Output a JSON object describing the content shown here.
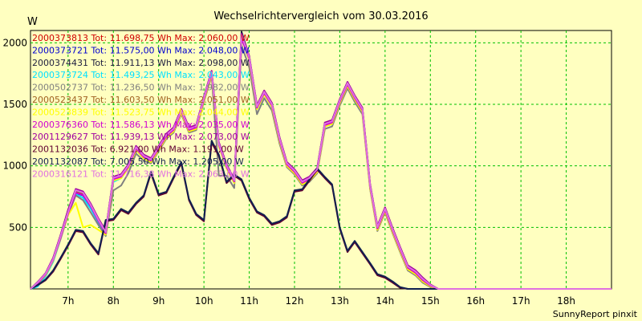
{
  "chart_data": {
    "type": "line",
    "title": "Wechselrichtervergleich vom 30.03.2016",
    "ylabel": "W",
    "credit": "SunnyReport pinxit",
    "background_color": "#ffffc0",
    "grid": true,
    "grid_color": "#00c000",
    "legend_position": "top-left",
    "xlim": [
      6.17,
      19.0
    ],
    "ylim": [
      0,
      2100
    ],
    "x_ticks": [
      {
        "value": 7,
        "label": "7h"
      },
      {
        "value": 8,
        "label": "8h"
      },
      {
        "value": 9,
        "label": "9h"
      },
      {
        "value": 10,
        "label": "10h"
      },
      {
        "value": 11,
        "label": "11h"
      },
      {
        "value": 12,
        "label": "12h"
      },
      {
        "value": 13,
        "label": "13h"
      },
      {
        "value": 14,
        "label": "14h"
      },
      {
        "value": 15,
        "label": "15h"
      },
      {
        "value": 16,
        "label": "16h"
      },
      {
        "value": 17,
        "label": "17h"
      },
      {
        "value": 18,
        "label": "18h"
      }
    ],
    "y_ticks": [
      {
        "value": 500,
        "label": "500"
      },
      {
        "value": 1000,
        "label": "1000"
      },
      {
        "value": 1500,
        "label": "1500"
      },
      {
        "value": 2000,
        "label": "2000"
      }
    ],
    "x": [
      6.17,
      6.33,
      6.5,
      6.67,
      6.83,
      7.0,
      7.17,
      7.33,
      7.5,
      7.67,
      7.83,
      8.0,
      8.17,
      8.33,
      8.5,
      8.67,
      8.83,
      9.0,
      9.17,
      9.33,
      9.5,
      9.67,
      9.83,
      10.0,
      10.17,
      10.33,
      10.5,
      10.67,
      10.83,
      11.0,
      11.17,
      11.33,
      11.5,
      11.67,
      11.83,
      12.0,
      12.17,
      12.33,
      12.5,
      12.67,
      12.83,
      13.0,
      13.17,
      13.33,
      13.5,
      13.67,
      13.83,
      14.0,
      14.17,
      14.33,
      14.5,
      14.67,
      14.83,
      15.0,
      15.17,
      15.33,
      15.5,
      15.67,
      15.83,
      16.0,
      16.17,
      16.33,
      16.5,
      16.67,
      16.83,
      17.0,
      17.17,
      17.33,
      17.5,
      17.67,
      17.83,
      18.0,
      18.17,
      18.33,
      18.5,
      18.67,
      18.83,
      19.0
    ],
    "series": [
      {
        "name": "2000373813 Tot: 11.698,75 Wh Max: 2.060,00 W",
        "color": "#d00000",
        "values": [
          0,
          50,
          120,
          240,
          420,
          620,
          800,
          780,
          680,
          560,
          460,
          900,
          920,
          1000,
          1150,
          1080,
          1050,
          1150,
          1250,
          1300,
          1450,
          1300,
          1320,
          1550,
          1760,
          1180,
          1000,
          880,
          2060,
          1880,
          1480,
          1600,
          1500,
          1220,
          1020,
          960,
          870,
          900,
          970,
          1340,
          1360,
          1530,
          1670,
          1560,
          1460,
          840,
          500,
          650,
          480,
          330,
          180,
          140,
          80,
          30,
          0,
          0,
          0,
          0,
          0,
          0,
          0,
          0,
          0,
          0,
          0,
          0,
          0,
          0,
          0,
          0,
          0,
          0,
          0,
          0,
          0,
          0,
          0,
          0
        ]
      },
      {
        "name": "2000373721 Tot: 11.575,00 Wh Max: 2.048,00 W",
        "color": "#0000d0",
        "values": [
          0,
          45,
          115,
          235,
          410,
          610,
          780,
          760,
          670,
          550,
          450,
          890,
          910,
          990,
          1140,
          1070,
          1040,
          1140,
          1240,
          1290,
          1440,
          1290,
          1310,
          1540,
          1750,
          1170,
          990,
          870,
          2048,
          1870,
          1470,
          1590,
          1490,
          1210,
          1010,
          950,
          860,
          890,
          960,
          1330,
          1350,
          1520,
          1660,
          1550,
          1450,
          830,
          490,
          640,
          470,
          320,
          170,
          130,
          70,
          25,
          0,
          0,
          0,
          0,
          0,
          0,
          0,
          0,
          0,
          0,
          0,
          0,
          0,
          0,
          0,
          0,
          0,
          0,
          0,
          0,
          0,
          0,
          0,
          0
        ]
      },
      {
        "name": "2000374431 Tot: 11.911,13 Wh Max: 2.098,00 W",
        "color": "#202040",
        "values": [
          0,
          55,
          125,
          250,
          430,
          640,
          810,
          790,
          690,
          570,
          470,
          910,
          930,
          1010,
          1160,
          1090,
          1060,
          1160,
          1260,
          1310,
          1460,
          1310,
          1330,
          1560,
          1770,
          1190,
          1010,
          890,
          2090,
          1890,
          1490,
          1610,
          1510,
          1230,
          1030,
          970,
          880,
          910,
          980,
          1350,
          1370,
          1540,
          1680,
          1570,
          1470,
          850,
          510,
          660,
          490,
          340,
          190,
          150,
          90,
          35,
          0,
          0,
          0,
          0,
          0,
          0,
          0,
          0,
          0,
          0,
          0,
          0,
          0,
          0,
          0,
          0,
          0,
          0,
          0,
          0,
          0,
          0,
          0,
          0
        ]
      },
      {
        "name": "2000373724 Tot: 11.493,25 Wh Max: 2.043,00 W",
        "color": "#00e0ff",
        "values": [
          0,
          20,
          100,
          220,
          400,
          600,
          770,
          740,
          650,
          540,
          430,
          870,
          900,
          980,
          1130,
          1060,
          1030,
          1130,
          1230,
          1280,
          1430,
          1280,
          1300,
          1530,
          1740,
          1160,
          980,
          860,
          2040,
          1860,
          1460,
          1580,
          1480,
          1200,
          1000,
          940,
          850,
          880,
          950,
          1320,
          1340,
          1510,
          1650,
          1540,
          1440,
          820,
          480,
          630,
          460,
          310,
          160,
          120,
          60,
          20,
          0,
          0,
          0,
          0,
          0,
          0,
          0,
          0,
          0,
          0,
          0,
          0,
          0,
          0,
          0,
          0,
          0,
          0,
          0,
          0,
          0,
          0,
          0,
          0
        ]
      },
      {
        "name": "2000502737 Tot: 11.236,50 Wh Max: 1.982,00 W",
        "color": "#808080",
        "values": [
          0,
          40,
          110,
          230,
          400,
          600,
          760,
          720,
          620,
          520,
          430,
          800,
          840,
          940,
          1100,
          1040,
          1020,
          1120,
          1220,
          1270,
          1420,
          1270,
          1290,
          1520,
          1730,
          920,
          920,
          820,
          1980,
          1800,
          1420,
          1550,
          1450,
          1180,
          990,
          930,
          840,
          870,
          940,
          1300,
          1320,
          1490,
          1630,
          1520,
          1420,
          810,
          470,
          620,
          450,
          300,
          150,
          110,
          50,
          15,
          0,
          0,
          0,
          0,
          0,
          0,
          0,
          0,
          0,
          0,
          0,
          0,
          0,
          0,
          0,
          0,
          0,
          0,
          0,
          0,
          0,
          0,
          0,
          0
        ]
      },
      {
        "name": "2000523437 Tot: 11.603,50 Wh Max: 2.051,00 W",
        "color": "#a06020",
        "values": [
          0,
          48,
          118,
          238,
          415,
          615,
          790,
          770,
          675,
          555,
          455,
          895,
          915,
          995,
          1145,
          1075,
          1045,
          1145,
          1245,
          1295,
          1445,
          1295,
          1315,
          1545,
          1755,
          1175,
          995,
          875,
          2050,
          1875,
          1475,
          1595,
          1495,
          1215,
          1015,
          955,
          865,
          895,
          965,
          1335,
          1355,
          1525,
          1665,
          1555,
          1455,
          835,
          495,
          645,
          475,
          325,
          175,
          135,
          75,
          28,
          0,
          0,
          0,
          0,
          0,
          0,
          0,
          0,
          0,
          0,
          0,
          0,
          0,
          0,
          0,
          0,
          0,
          0,
          0,
          0,
          0,
          0,
          0,
          0
        ]
      },
      {
        "name": "2000523839 Tot: 11.523,75 Wh Max: 2.044,00 W",
        "color": "#ffff00",
        "values": [
          0,
          45,
          110,
          230,
          410,
          600,
          700,
          500,
          520,
          480,
          440,
          880,
          900,
          980,
          1130,
          1060,
          1030,
          1130,
          1230,
          1280,
          1430,
          1280,
          1300,
          1530,
          1740,
          1160,
          980,
          860,
          2040,
          1860,
          1460,
          1580,
          1480,
          1200,
          1000,
          940,
          850,
          880,
          950,
          1320,
          1340,
          1510,
          1650,
          1540,
          1440,
          820,
          480,
          630,
          460,
          310,
          160,
          120,
          60,
          20,
          0,
          0,
          0,
          0,
          0,
          0,
          0,
          0,
          0,
          0,
          0,
          0,
          0,
          0,
          0,
          0,
          0,
          0,
          0,
          0,
          0,
          0,
          0,
          0
        ]
      },
      {
        "name": "2000376360 Tot: 11.586,13 Wh Max: 2.035,00 W",
        "color": "#d000d0",
        "values": [
          0,
          46,
          116,
          236,
          412,
          612,
          782,
          762,
          672,
          552,
          452,
          892,
          912,
          992,
          1142,
          1072,
          1042,
          1142,
          1242,
          1292,
          1442,
          1292,
          1312,
          1542,
          1752,
          1172,
          992,
          872,
          2035,
          1872,
          1472,
          1592,
          1492,
          1212,
          1012,
          952,
          862,
          892,
          962,
          1332,
          1352,
          1522,
          1662,
          1552,
          1452,
          832,
          492,
          642,
          472,
          322,
          172,
          132,
          72,
          26,
          0,
          0,
          0,
          0,
          0,
          0,
          0,
          0,
          0,
          0,
          0,
          0,
          0,
          0,
          0,
          0,
          0,
          0,
          0,
          0,
          0,
          0,
          0,
          0
        ]
      },
      {
        "name": "2001129627 Tot: 11.939,13 Wh Max: 2.073,00 W",
        "color": "#a000a0",
        "values": [
          0,
          56,
          126,
          252,
          432,
          642,
          812,
          792,
          692,
          572,
          472,
          912,
          932,
          1012,
          1162,
          1092,
          1062,
          1162,
          1262,
          1312,
          1462,
          1312,
          1332,
          1562,
          1772,
          1192,
          1012,
          892,
          2073,
          1892,
          1492,
          1612,
          1512,
          1232,
          1032,
          972,
          882,
          912,
          982,
          1352,
          1372,
          1542,
          1682,
          1572,
          1472,
          852,
          512,
          662,
          492,
          342,
          192,
          152,
          92,
          36,
          0,
          0,
          0,
          0,
          0,
          0,
          0,
          0,
          0,
          0,
          0,
          0,
          0,
          0,
          0,
          0,
          0,
          0,
          0,
          0,
          0,
          0,
          0,
          0
        ]
      },
      {
        "name": "2001132036 Tot: 6.921,00 Wh Max: 1.191,00 W",
        "color": "#600030",
        "values": [
          0,
          30,
          70,
          140,
          240,
          350,
          470,
          460,
          360,
          280,
          550,
          560,
          640,
          610,
          690,
          750,
          940,
          760,
          780,
          900,
          1020,
          720,
          600,
          550,
          1191,
          1080,
          860,
          920,
          880,
          730,
          620,
          590,
          520,
          540,
          580,
          790,
          800,
          880,
          970,
          900,
          840,
          490,
          300,
          380,
          290,
          200,
          110,
          90,
          50,
          10,
          0,
          0,
          0,
          0,
          0,
          0,
          0,
          0,
          0,
          0,
          0,
          0,
          0,
          0,
          0,
          0,
          0,
          0,
          0,
          0,
          0,
          0,
          0,
          0,
          0,
          0,
          0,
          0
        ]
      },
      {
        "name": "2001132087 Tot: 7.005,50 Wh Max: 1.205,00 W",
        "color": "#102050",
        "values": [
          0,
          32,
          75,
          150,
          250,
          360,
          480,
          470,
          370,
          290,
          560,
          570,
          650,
          620,
          700,
          760,
          950,
          770,
          790,
          910,
          1030,
          730,
          610,
          560,
          1205,
          1090,
          870,
          930,
          890,
          740,
          630,
          600,
          530,
          550,
          590,
          800,
          810,
          890,
          980,
          910,
          850,
          500,
          310,
          390,
          300,
          210,
          120,
          100,
          60,
          15,
          0,
          0,
          0,
          0,
          0,
          0,
          0,
          0,
          0,
          0,
          0,
          0,
          0,
          0,
          0,
          0,
          0,
          0,
          0,
          0,
          0,
          0,
          0,
          0,
          0,
          0,
          0,
          0
        ]
      },
      {
        "name": "2000316121 Tot: 11.716,38 Wh Max: 2.063,00 W",
        "color": "#e070e0",
        "values": [
          0,
          52,
          122,
          242,
          422,
          622,
          802,
          782,
          682,
          562,
          462,
          902,
          922,
          1002,
          1152,
          1082,
          1052,
          1152,
          1252,
          1302,
          1452,
          1302,
          1322,
          1552,
          1762,
          1182,
          1002,
          882,
          2063,
          1882,
          1482,
          1602,
          1502,
          1222,
          1022,
          962,
          872,
          902,
          972,
          1342,
          1362,
          1532,
          1672,
          1562,
          1462,
          842,
          502,
          652,
          482,
          332,
          182,
          142,
          82,
          32,
          0,
          0,
          0,
          0,
          0,
          0,
          0,
          0,
          0,
          0,
          0,
          0,
          0,
          0,
          0,
          0,
          0,
          0,
          0,
          0,
          0,
          0,
          0,
          0
        ]
      }
    ]
  }
}
